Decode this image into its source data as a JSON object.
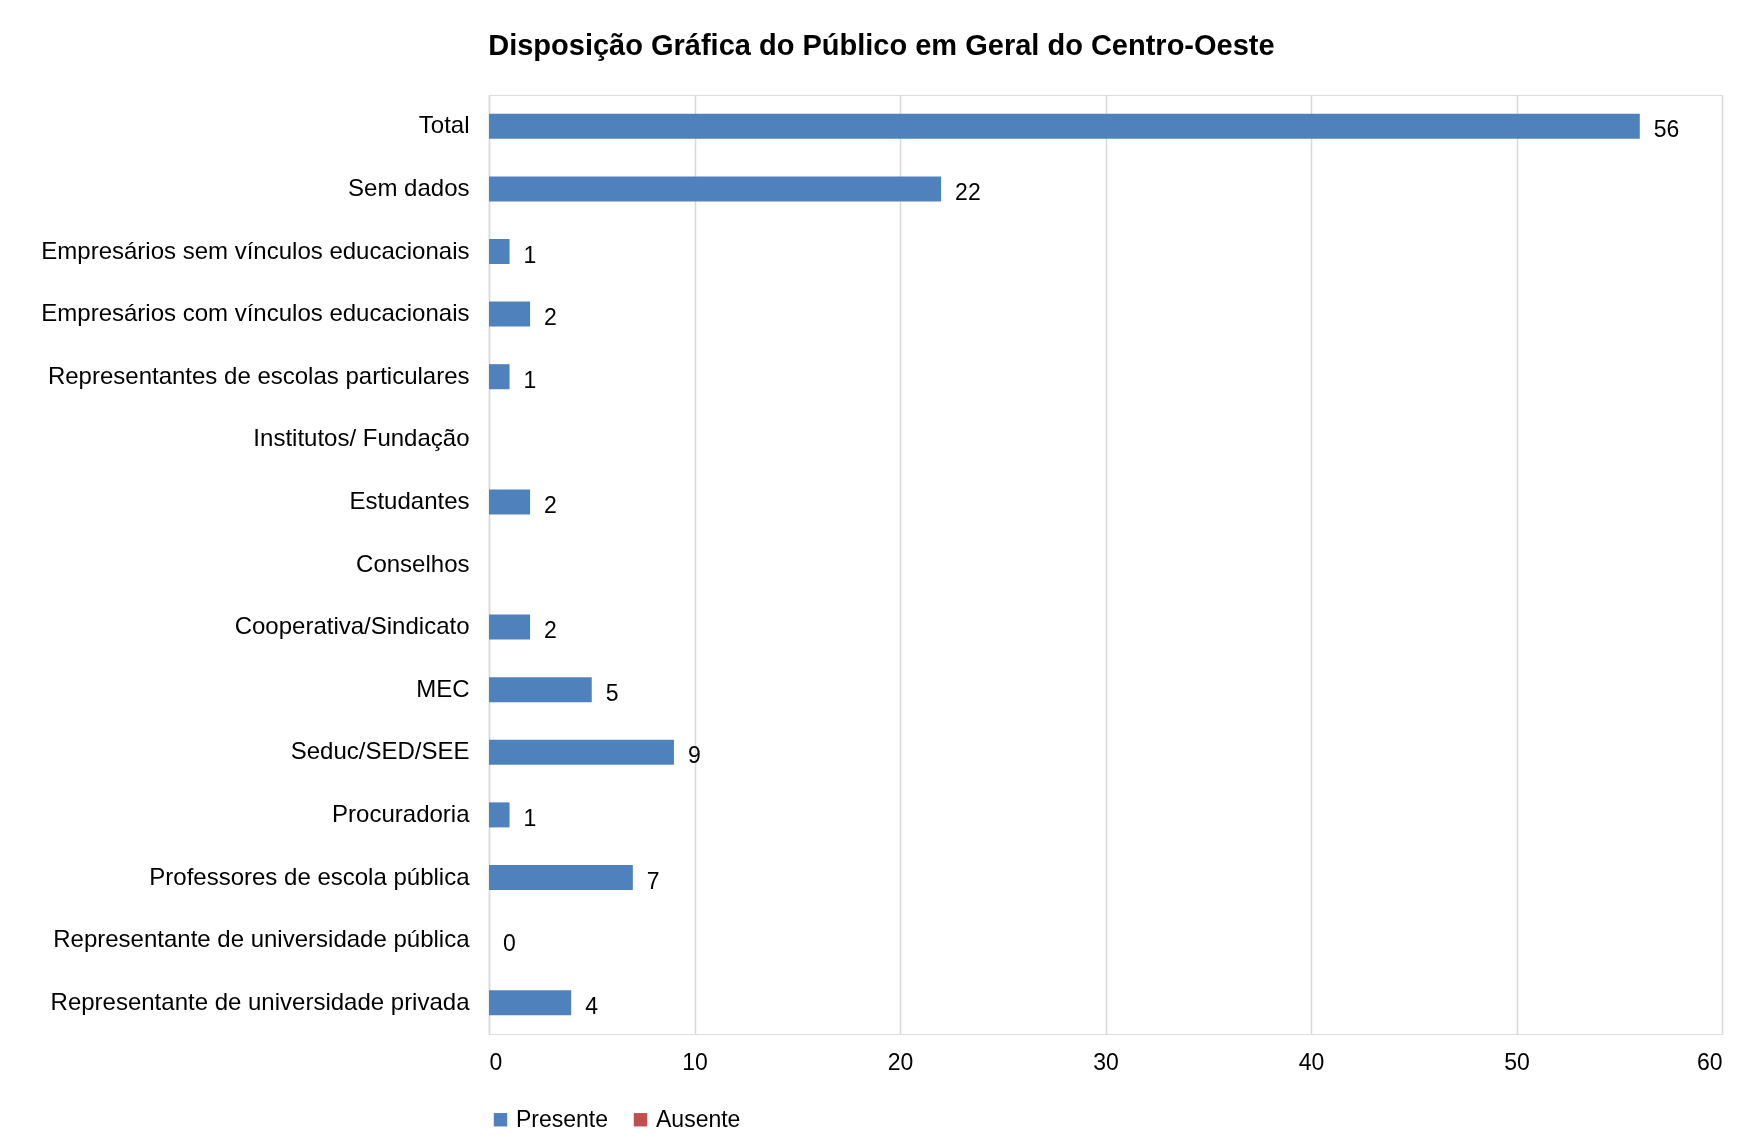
{
  "chart_data": {
    "type": "bar",
    "orientation": "horizontal",
    "title": "Disposição Gráfica do Público em Geral do Centro-Oeste",
    "categories": [
      "Total",
      "Sem dados",
      "Empresários sem vínculos educacionais",
      "Empresários com vínculos educacionais",
      "Representantes de escolas particulares",
      "Institutos/ Fundação",
      "Estudantes",
      "Conselhos",
      "Cooperativa/Sindicato",
      "MEC",
      "Seduc/SED/SEE",
      "Procuradoria",
      "Professores de escola pública",
      "Representante de universidade pública",
      "Representante de universidade privada"
    ],
    "series": [
      {
        "name": "Presente",
        "color": "#4f81bd",
        "values": [
          56,
          22,
          1,
          2,
          1,
          null,
          2,
          null,
          2,
          5,
          9,
          1,
          7,
          0,
          4
        ]
      },
      {
        "name": "Ausente",
        "color": "#c0504d",
        "values": [
          null,
          null,
          null,
          null,
          null,
          null,
          null,
          null,
          null,
          null,
          null,
          null,
          null,
          null,
          null
        ]
      }
    ],
    "xlim": [
      0,
      60
    ],
    "xticks": [
      0,
      10,
      20,
      30,
      40,
      50,
      60
    ],
    "grid": "x",
    "legend": "bottom",
    "data_labels": true
  }
}
